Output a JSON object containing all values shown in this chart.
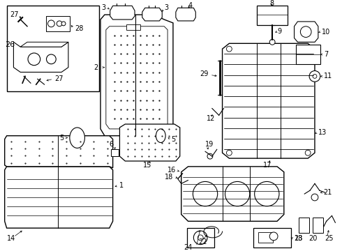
{
  "bg": "#ffffff",
  "lc": "#000000",
  "tc": "#000000",
  "figsize": [
    4.9,
    3.6
  ],
  "dpi": 100
}
